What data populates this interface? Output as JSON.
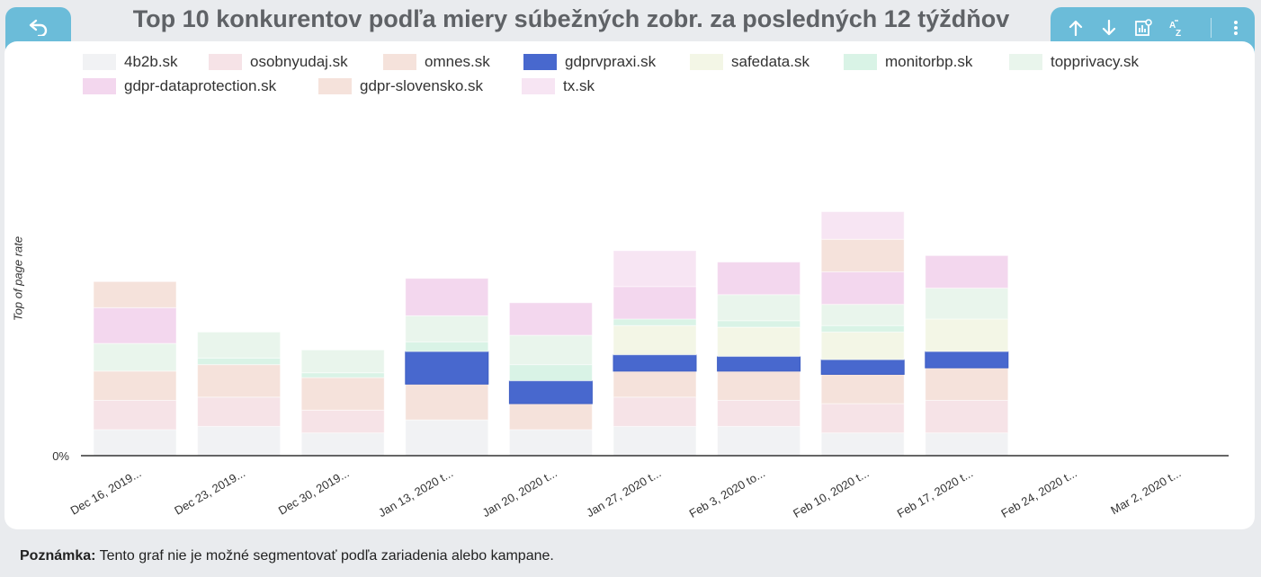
{
  "header": {
    "title": "Top 10 konkurentov podľa miery súbežných zobr. za posledných 12 týždňov",
    "back_icon": "undo-arrow-icon",
    "toolbar_icons": [
      "arrow-up-icon",
      "arrow-down-icon",
      "chart-settings-icon",
      "sort-az-icon",
      "more-vert-icon"
    ],
    "tab_color": "#6bbcd9"
  },
  "footer": {
    "note_label": "Poznámka:",
    "note_text": " Tento graf nie je možné segmentovať podľa zariadenia alebo kampane."
  },
  "chart_data": {
    "type": "bar",
    "stacked": true,
    "title": "Top 10 konkurentov podľa miery súbežných zobr. za posledných 12 týždňov",
    "ylabel": "Top of page rate",
    "xlabel": "",
    "y_tick_labels": [
      "0%"
    ],
    "legend_placement": "top",
    "grid": false,
    "categories": [
      "Dec 16, 2019...",
      "Dec 23, 2019...",
      "Dec 30, 2019...",
      "Jan 13, 2020 t...",
      "Jan 20, 2020 t...",
      "Jan 27, 2020 t...",
      "Feb 3, 2020 to...",
      "Feb 10, 2020 t...",
      "Feb 17, 2020 t...",
      "Feb 24, 2020 t...",
      "Mar 2, 2020 t..."
    ],
    "series": [
      {
        "name": "4b2b.sk",
        "color": "#f1f2f4",
        "values": [
          8,
          9,
          7,
          11,
          8,
          9,
          9,
          7,
          7,
          0,
          0
        ]
      },
      {
        "name": "osobnyudaj.sk",
        "color": "#f6e3e7",
        "values": [
          9,
          9,
          7,
          0,
          0,
          9,
          8,
          9,
          10,
          0,
          0
        ]
      },
      {
        "name": "omnes.sk",
        "color": "#f5e2db",
        "values": [
          9,
          10,
          10,
          11,
          8,
          8,
          9,
          9,
          10,
          0,
          0
        ]
      },
      {
        "name": "gdprvpraxi.sk",
        "color": "#4868ce",
        "values": [
          0,
          0,
          0,
          10,
          7,
          5,
          4.5,
          4.5,
          5,
          0,
          0
        ]
      },
      {
        "name": "safedata.sk",
        "color": "#f3f6e6",
        "values": [
          0,
          0,
          0,
          0,
          0,
          9,
          9,
          8.5,
          10,
          0,
          0
        ]
      },
      {
        "name": "monitorbp.sk",
        "color": "#d9f3e6",
        "values": [
          0,
          2,
          1.5,
          3,
          5,
          2,
          2,
          2,
          0,
          0,
          0
        ]
      },
      {
        "name": "topprivacy.sk",
        "color": "#e9f5ec",
        "values": [
          8.5,
          8,
          7,
          8,
          9,
          0,
          8,
          6.5,
          9.5,
          0,
          0
        ]
      },
      {
        "name": "gdpr-dataprotection.sk",
        "color": "#f3d7ee",
        "values": [
          11,
          0,
          0,
          11.5,
          10,
          10,
          10,
          10,
          10,
          0,
          0
        ]
      },
      {
        "name": "gdpr-slovensko.sk",
        "color": "#f5e2db",
        "values": [
          8,
          0,
          0,
          0,
          0,
          0,
          0,
          10,
          0,
          0,
          0
        ]
      },
      {
        "name": "tx.sk",
        "color": "#f7e5f3",
        "values": [
          0,
          0,
          0,
          0,
          0,
          11,
          0,
          8.5,
          0,
          0,
          0
        ]
      }
    ],
    "ylim": [
      0,
      100
    ]
  }
}
